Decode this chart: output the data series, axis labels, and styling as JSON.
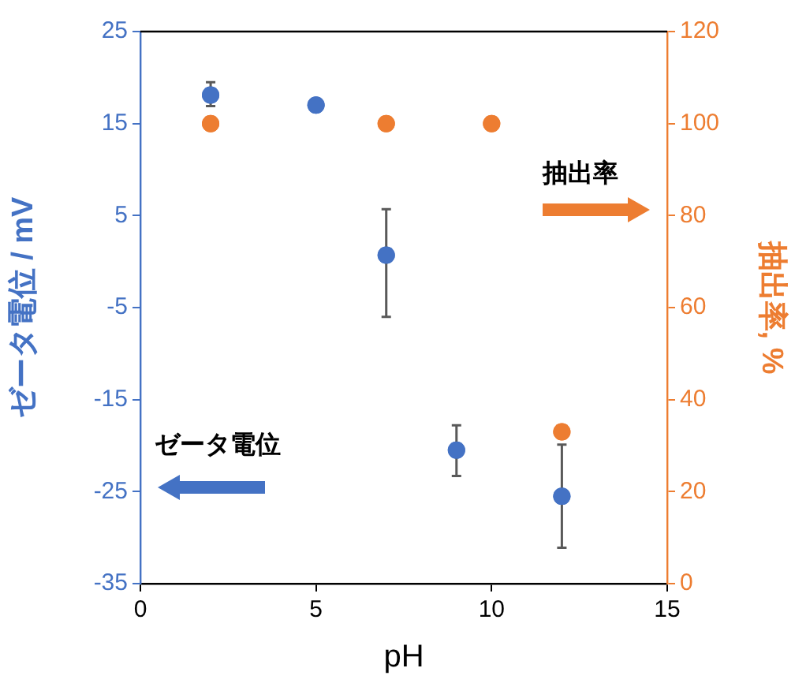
{
  "chart_data": {
    "type": "scatter",
    "xlabel": "pH",
    "ylabel": "ゼータ電位 / mV",
    "y2label": "抽出率, %",
    "xlim": [
      0,
      15
    ],
    "xticks": [
      0,
      5,
      10,
      15
    ],
    "ylim": [
      -35,
      25
    ],
    "yticks": [
      -35,
      -25,
      -15,
      -5,
      5,
      15,
      25
    ],
    "y2lim": [
      0,
      120
    ],
    "y2ticks": [
      0,
      20,
      40,
      60,
      80,
      100,
      120
    ],
    "grid": false,
    "legend": false,
    "marker": "circle",
    "annotations": [
      "抽出率",
      "ゼータ電位"
    ],
    "series": [
      {
        "color": "#4472c4",
        "x": [
          2,
          5,
          7,
          9,
          12
        ],
        "values": [
          18.1,
          17.0,
          0.7,
          -20.5,
          -25.5
        ],
        "errors": [
          [
            16.9,
            19.5
          ],
          null,
          [
            -6.0,
            5.7
          ],
          [
            -23.3,
            -17.8
          ],
          [
            -31.1,
            -19.9
          ]
        ],
        "axis": "y"
      },
      {
        "color": "#ed7d31",
        "x": [
          2,
          7,
          10,
          12
        ],
        "values": [
          100,
          100,
          100,
          33
        ],
        "axis": "y2"
      }
    ]
  }
}
